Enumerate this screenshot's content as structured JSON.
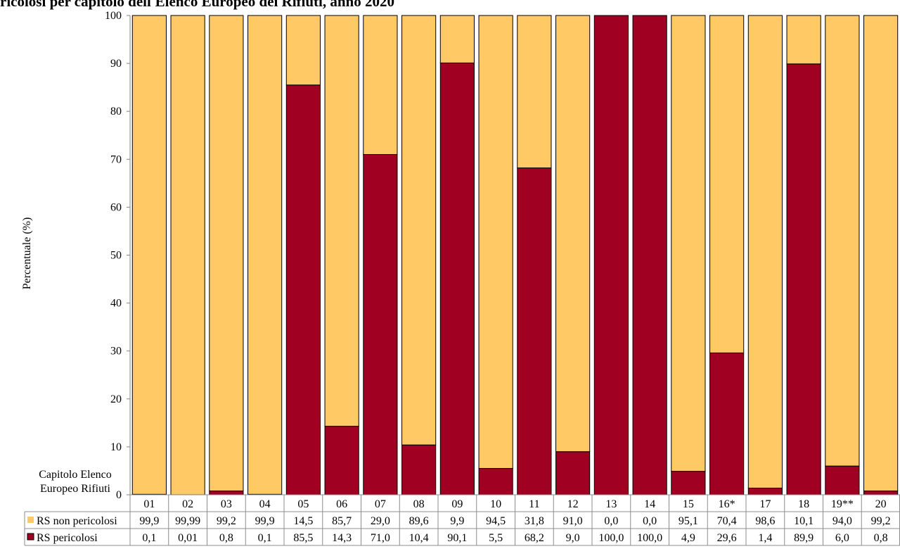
{
  "title": "ricolosi per capitolo dell'Elenco Europeo dei Rifiuti, anno 2020",
  "colors": {
    "non_pericolosi": "#FFC966",
    "pericolosi": "#A00021"
  },
  "chart_data": {
    "type": "bar",
    "stacked": true,
    "title": "ricolosi per capitolo dell'Elenco Europeo dei Rifiuti, anno 2020",
    "xlabel": "Capitolo Elenco Europeo Rifiuti",
    "ylabel": "Percentuale (%)",
    "ylim": [
      0,
      100
    ],
    "yticks": [
      "0",
      "10",
      "20",
      "30",
      "40",
      "50",
      "60",
      "70",
      "80",
      "90",
      "100"
    ],
    "categories": [
      "01",
      "02",
      "03",
      "04",
      "05",
      "06",
      "07",
      "08",
      "09",
      "10",
      "11",
      "12",
      "13",
      "14",
      "15",
      "16*",
      "17",
      "18",
      "19**",
      "20"
    ],
    "series": [
      {
        "name": "RS pericolosi",
        "color": "#A00021",
        "values": [
          0.1,
          0.01,
          0.8,
          0.1,
          85.5,
          14.3,
          71.0,
          10.4,
          90.1,
          5.5,
          68.2,
          9.0,
          100.0,
          100.0,
          4.9,
          29.6,
          1.4,
          89.9,
          6.0,
          0.8
        ],
        "labels": [
          "0,1",
          "0,01",
          "0,8",
          "0,1",
          "85,5",
          "14,3",
          "71,0",
          "10,4",
          "90,1",
          "5,5",
          "68,2",
          "9,0",
          "100,0",
          "100,0",
          "4,9",
          "29,6",
          "1,4",
          "89,9",
          "6,0",
          "0,8"
        ]
      },
      {
        "name": "RS non pericolosi",
        "color": "#FFC966",
        "values": [
          99.9,
          99.99,
          99.2,
          99.9,
          14.5,
          85.7,
          29.0,
          89.6,
          9.9,
          94.5,
          31.8,
          91.0,
          0.0,
          0.0,
          95.1,
          70.4,
          98.6,
          10.1,
          94.0,
          99.2
        ],
        "labels": [
          "99,9",
          "99,99",
          "99,2",
          "99,9",
          "14,5",
          "85,7",
          "29,0",
          "89,6",
          "9,9",
          "94,5",
          "31,8",
          "91,0",
          "0,0",
          "0,0",
          "95,1",
          "70,4",
          "98,6",
          "10,1",
          "94,0",
          "99,2"
        ]
      }
    ],
    "table_row_order": [
      "RS non pericolosi",
      "RS pericolosi"
    ],
    "grid": false,
    "legend": "data-table"
  }
}
